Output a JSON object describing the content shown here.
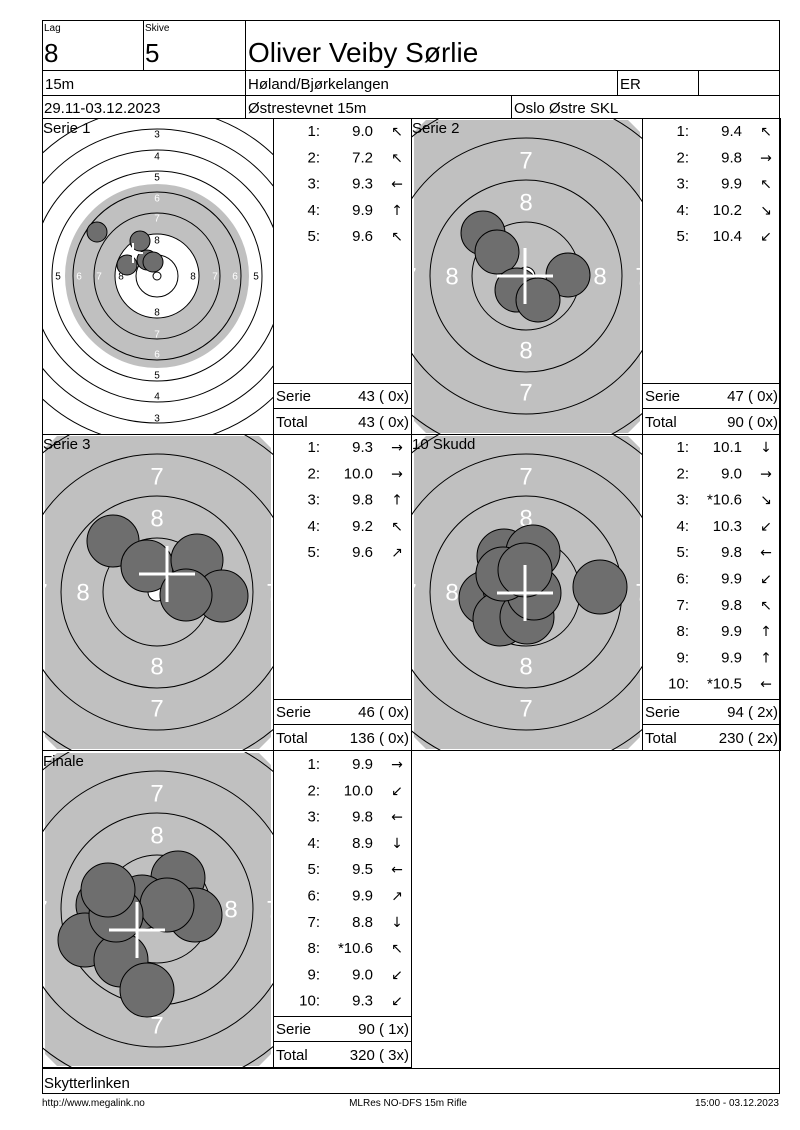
{
  "header": {
    "lag_label": "Lag",
    "lag": "8",
    "skive_label": "Skive",
    "skive": "5",
    "name": "Oliver Veiby Sørlie",
    "distance": "15m",
    "club": "Høland/Bjørkelangen",
    "class": "ER",
    "dates": "29.11-03.12.2023",
    "event": "Østrestevnet 15m",
    "organizer": "Oslo Østre SKL"
  },
  "panels": [
    {
      "title": "Serie 1",
      "ring_labels": [
        "3",
        "4",
        "5",
        "6",
        "7",
        "8"
      ],
      "shots": [
        {
          "no": "1:",
          "value": "9.0",
          "arrow": "↖"
        },
        {
          "no": "2:",
          "value": "7.2",
          "arrow": "↖"
        },
        {
          "no": "3:",
          "value": "9.3",
          "arrow": "←"
        },
        {
          "no": "4:",
          "value": "9.9",
          "arrow": "↑"
        },
        {
          "no": "5:",
          "value": "9.6",
          "arrow": "↖"
        }
      ],
      "serie_label": "Serie",
      "serie_value": "43 ( 0x)",
      "total_label": "Total",
      "total_value": "43 ( 0x)"
    },
    {
      "title": "Serie 2",
      "ring_labels": [
        "7",
        "8"
      ],
      "shots": [
        {
          "no": "1:",
          "value": "9.4",
          "arrow": "↖"
        },
        {
          "no": "2:",
          "value": "9.8",
          "arrow": "→"
        },
        {
          "no": "3:",
          "value": "9.9",
          "arrow": "↖"
        },
        {
          "no": "4:",
          "value": "10.2",
          "arrow": "↘"
        },
        {
          "no": "5:",
          "value": "10.4",
          "arrow": "↙"
        }
      ],
      "serie_label": "Serie",
      "serie_value": "47 ( 0x)",
      "total_label": "Total",
      "total_value": "90 ( 0x)"
    },
    {
      "title": "Serie 3",
      "ring_labels": [
        "7",
        "8"
      ],
      "shots": [
        {
          "no": "1:",
          "value": "9.3",
          "arrow": "→"
        },
        {
          "no": "2:",
          "value": "10.0",
          "arrow": "→"
        },
        {
          "no": "3:",
          "value": "9.8",
          "arrow": "↑"
        },
        {
          "no": "4:",
          "value": "9.2",
          "arrow": "↖"
        },
        {
          "no": "5:",
          "value": "9.6",
          "arrow": "↗"
        }
      ],
      "serie_label": "Serie",
      "serie_value": "46 ( 0x)",
      "total_label": "Total",
      "total_value": "136 ( 0x)"
    },
    {
      "title": "10 Skudd",
      "ring_labels": [
        "7",
        "8"
      ],
      "shots": [
        {
          "no": "1:",
          "value": "10.1",
          "arrow": "↓"
        },
        {
          "no": "2:",
          "value": "9.0",
          "arrow": "→"
        },
        {
          "no": "3:",
          "value": "*10.6",
          "arrow": "↘"
        },
        {
          "no": "4:",
          "value": "10.3",
          "arrow": "↙"
        },
        {
          "no": "5:",
          "value": "9.8",
          "arrow": "←"
        },
        {
          "no": "6:",
          "value": "9.9",
          "arrow": "↙"
        },
        {
          "no": "7:",
          "value": "9.8",
          "arrow": "↖"
        },
        {
          "no": "8:",
          "value": "9.9",
          "arrow": "↑"
        },
        {
          "no": "9:",
          "value": "9.9",
          "arrow": "↑"
        },
        {
          "no": "10:",
          "value": "*10.5",
          "arrow": "←"
        }
      ],
      "serie_label": "Serie",
      "serie_value": "94 ( 2x)",
      "total_label": "Total",
      "total_value": "230 ( 2x)"
    },
    {
      "title": "Finale",
      "ring_labels": [
        "7",
        "8"
      ],
      "shots": [
        {
          "no": "1:",
          "value": "9.9",
          "arrow": "→"
        },
        {
          "no": "2:",
          "value": "10.0",
          "arrow": "↙"
        },
        {
          "no": "3:",
          "value": "9.8",
          "arrow": "←"
        },
        {
          "no": "4:",
          "value": "8.9",
          "arrow": "↓"
        },
        {
          "no": "5:",
          "value": "9.5",
          "arrow": "←"
        },
        {
          "no": "6:",
          "value": "9.9",
          "arrow": "↗"
        },
        {
          "no": "7:",
          "value": "8.8",
          "arrow": "↓"
        },
        {
          "no": "8:",
          "value": "*10.6",
          "arrow": "↖"
        },
        {
          "no": "9:",
          "value": "9.0",
          "arrow": "↙"
        },
        {
          "no": "10:",
          "value": "9.3",
          "arrow": "↙"
        }
      ],
      "serie_label": "Serie",
      "serie_value": "90 ( 1x)",
      "total_label": "Total",
      "total_value": "320 ( 3x)"
    }
  ],
  "footer": {
    "program": "Skytterlinken",
    "url": "http://www.megalink.no",
    "software": "MLRes NO-DFS 15m Rifle",
    "timestamp": "15:00 - 03.12.2023"
  }
}
